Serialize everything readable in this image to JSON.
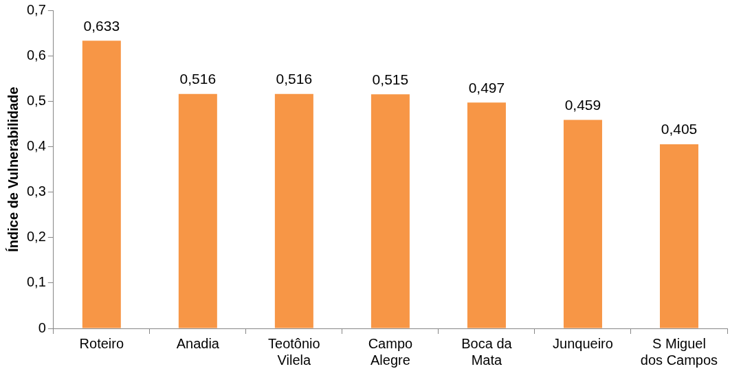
{
  "chart_data": {
    "type": "bar",
    "ylabel": "Índice de Vulnerabilidade",
    "categories": [
      "Roteiro",
      "Anadia",
      "Teotônio Vilela",
      "Campo Alegre",
      "Boca da Mata",
      "Junqueiro",
      "S Miguel dos Campos"
    ],
    "values": [
      0.633,
      0.516,
      0.516,
      0.515,
      0.497,
      0.459,
      0.405
    ],
    "value_labels": [
      "0,633",
      "0,516",
      "0,516",
      "0,515",
      "0,497",
      "0,459",
      "0,405"
    ],
    "color": "#f79646",
    "ylim": [
      0,
      0.7
    ],
    "yticks": [
      0,
      {
        "value": 0.1,
        "label": "0,1"
      },
      {
        "value": 0.2,
        "label": "0,2"
      },
      {
        "value": 0.3,
        "label": "0,3"
      },
      {
        "value": 0.4,
        "label": "0,4"
      },
      {
        "value": 0.5,
        "label": "0,5"
      },
      {
        "value": 0.6,
        "label": "0,6"
      },
      {
        "value": 0.7,
        "label": "0,7"
      }
    ],
    "grid": false,
    "legend": false
  }
}
